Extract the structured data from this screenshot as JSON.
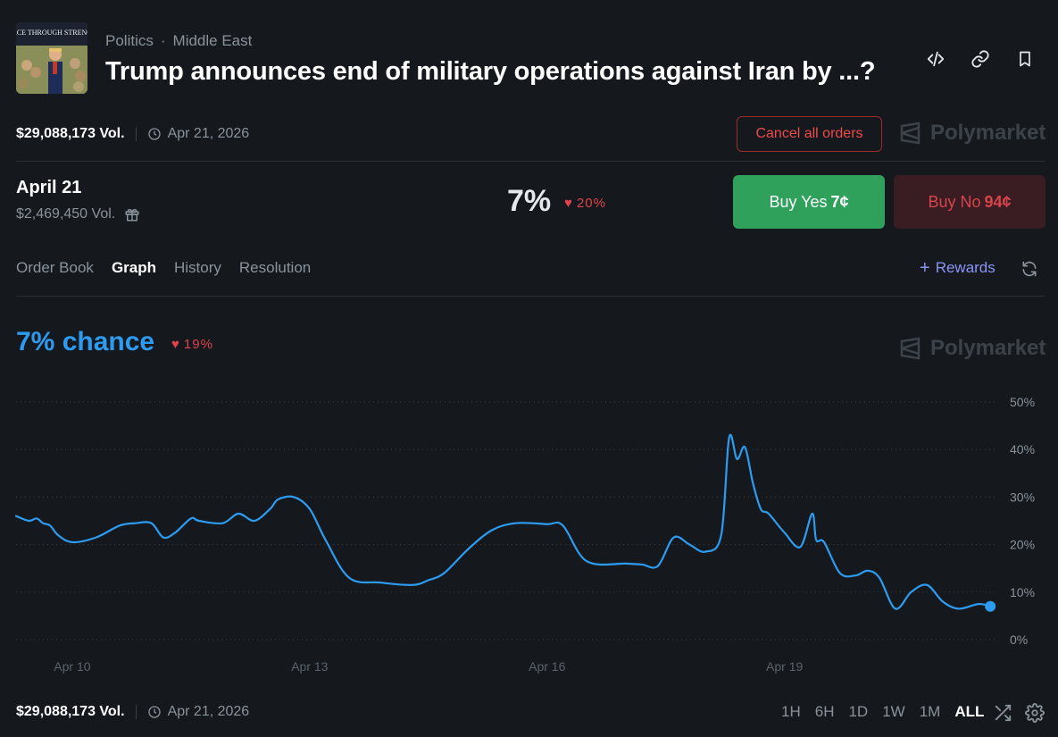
{
  "header": {
    "category": "Politics",
    "subcategory": "Middle East",
    "title": "Trump announces end of military operations against Iran by ...?",
    "thumbnail_text": "ACE THROUGH STRENG"
  },
  "market": {
    "volume": "$29,088,173 Vol.",
    "end_date": "Apr 21, 2026",
    "cancel_label": "Cancel all orders",
    "brand": "Polymarket"
  },
  "outcome": {
    "name": "April 21",
    "volume": "$2,469,450 Vol.",
    "price_pct": "7%",
    "change": "20%",
    "buy_yes_label": "Buy Yes",
    "buy_yes_price": "7¢",
    "buy_no_label": "Buy No",
    "buy_no_price": "94¢"
  },
  "tabs": [
    "Order Book",
    "Graph",
    "History",
    "Resolution"
  ],
  "active_tab": "Graph",
  "rewards_label": "Rewards",
  "graph": {
    "chance_label": "7% chance",
    "change": "19%",
    "brand": "Polymarket"
  },
  "footer": {
    "volume": "$29,088,173 Vol.",
    "end_date": "Apr 21, 2026",
    "timeframes": [
      "1H",
      "6H",
      "1D",
      "1W",
      "1M",
      "ALL"
    ],
    "active_timeframe": "ALL"
  },
  "colors": {
    "line": "#2d9cf0",
    "yes": "#2fa15b",
    "no_text": "#d8444b",
    "down": "#e0434b",
    "rewards": "#8a94f6"
  },
  "chart_data": {
    "type": "line",
    "ylabel": "",
    "xlabel": "",
    "y_ticks": [
      "50%",
      "40%",
      "30%",
      "20%",
      "10%",
      "0%"
    ],
    "ylim": [
      0,
      50
    ],
    "x_ticks": [
      "Apr 10",
      "Apr 13",
      "Apr 16",
      "Apr 19"
    ],
    "xlim": [
      9.29,
      21.7
    ],
    "series": [
      {
        "name": "",
        "x": [
          9.29,
          9.45,
          9.55,
          9.63,
          9.72,
          9.82,
          10.0,
          10.3,
          10.6,
          10.8,
          11.0,
          11.15,
          11.3,
          11.5,
          11.6,
          11.9,
          12.1,
          12.3,
          12.5,
          12.6,
          12.8,
          13.0,
          13.2,
          13.5,
          13.9,
          14.3,
          14.5,
          14.7,
          15.0,
          15.3,
          15.6,
          16.0,
          16.2,
          16.5,
          17.0,
          17.2,
          17.4,
          17.6,
          17.8,
          18.0,
          18.2,
          18.3,
          18.4,
          18.5,
          18.6,
          18.7,
          18.8,
          19.0,
          19.2,
          19.35,
          19.4,
          19.5,
          19.7,
          19.9,
          20.05,
          20.2,
          20.4,
          20.6,
          20.8,
          21.0,
          21.2,
          21.45,
          21.6
        ],
        "y": [
          26,
          25,
          25.5,
          24.5,
          24,
          22,
          20.5,
          21.5,
          24,
          24.5,
          24.5,
          21.5,
          22.5,
          25.5,
          25,
          24.5,
          26.5,
          25,
          27.5,
          29.5,
          30,
          27.5,
          21,
          13,
          12,
          11.5,
          12.5,
          14,
          19,
          23,
          24.5,
          24.3,
          24,
          16.5,
          16,
          15.8,
          15.5,
          21.5,
          20,
          18.5,
          22,
          42.5,
          38,
          40.5,
          33,
          27.5,
          26.5,
          22.5,
          19.5,
          26.5,
          21,
          20.5,
          14,
          13.5,
          14.5,
          13,
          6.5,
          10,
          11.5,
          8,
          6.5,
          7.5,
          7
        ]
      }
    ]
  }
}
